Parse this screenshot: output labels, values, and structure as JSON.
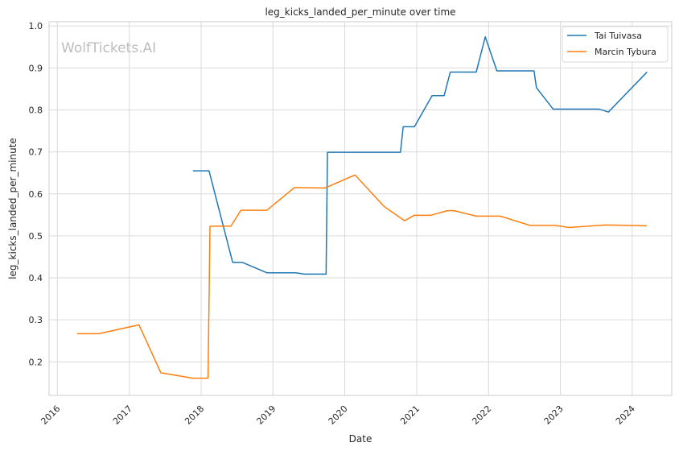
{
  "chart_data": {
    "type": "line",
    "title": "leg_kicks_landed_per_minute over time",
    "xlabel": "Date",
    "ylabel": "leg_kicks_landed_per_minute",
    "watermark": "WolfTickets.AI",
    "xlim": [
      "2015-11-20",
      "2024-07-20"
    ],
    "ylim": [
      0.12,
      1.01
    ],
    "x_ticks": [
      "2016-01-01",
      "2017-01-01",
      "2018-01-01",
      "2019-01-01",
      "2020-01-01",
      "2021-01-01",
      "2022-01-01",
      "2023-01-01",
      "2024-01-01"
    ],
    "x_tick_labels": [
      "2016",
      "2017",
      "2018",
      "2019",
      "2020",
      "2021",
      "2022",
      "2023",
      "2024"
    ],
    "y_ticks": [
      0.2,
      0.3,
      0.4,
      0.5,
      0.6,
      0.7,
      0.8,
      0.9,
      1.0
    ],
    "y_tick_labels": [
      "0.2",
      "0.3",
      "0.4",
      "0.5",
      "0.6",
      "0.7",
      "0.8",
      "0.9",
      "1.0"
    ],
    "grid": true,
    "legend_position": "top-right",
    "series": [
      {
        "name": "Tai Tuivasa",
        "color": "#1f77b4",
        "points": [
          [
            "2017-11-20",
            0.655
          ],
          [
            "2018-02-10",
            0.655
          ],
          [
            "2018-06-10",
            0.437
          ],
          [
            "2018-07-28",
            0.437
          ],
          [
            "2018-12-02",
            0.412
          ],
          [
            "2019-04-28",
            0.412
          ],
          [
            "2019-06-08",
            0.409
          ],
          [
            "2019-09-28",
            0.409
          ],
          [
            "2019-10-05",
            0.699
          ],
          [
            "2020-10-10",
            0.699
          ],
          [
            "2020-10-24",
            0.76
          ],
          [
            "2020-12-20",
            0.76
          ],
          [
            "2021-03-20",
            0.834
          ],
          [
            "2021-05-20",
            0.834
          ],
          [
            "2021-06-20",
            0.89
          ],
          [
            "2021-10-30",
            0.89
          ],
          [
            "2021-12-15",
            0.974
          ],
          [
            "2022-02-12",
            0.893
          ],
          [
            "2022-08-20",
            0.893
          ],
          [
            "2022-09-01",
            0.853
          ],
          [
            "2022-11-25",
            0.802
          ],
          [
            "2023-07-15",
            0.802
          ],
          [
            "2023-09-02",
            0.795
          ],
          [
            "2024-03-16",
            0.89
          ]
        ]
      },
      {
        "name": "Marcin Tybura",
        "color": "#ff7f0e",
        "points": [
          [
            "2016-04-10",
            0.267
          ],
          [
            "2016-07-30",
            0.267
          ],
          [
            "2017-02-19",
            0.288
          ],
          [
            "2017-06-10",
            0.174
          ],
          [
            "2017-11-20",
            0.161
          ],
          [
            "2018-02-05",
            0.161
          ],
          [
            "2018-02-15",
            0.523
          ],
          [
            "2018-06-01",
            0.523
          ],
          [
            "2018-07-22",
            0.561
          ],
          [
            "2018-12-01",
            0.561
          ],
          [
            "2019-04-20",
            0.615
          ],
          [
            "2019-09-22",
            0.614
          ],
          [
            "2020-02-22",
            0.645
          ],
          [
            "2020-07-19",
            0.57
          ],
          [
            "2020-10-31",
            0.536
          ],
          [
            "2020-12-19",
            0.549
          ],
          [
            "2021-03-13",
            0.549
          ],
          [
            "2021-06-05",
            0.56
          ],
          [
            "2021-07-10",
            0.56
          ],
          [
            "2021-10-30",
            0.547
          ],
          [
            "2022-03-01",
            0.547
          ],
          [
            "2022-07-30",
            0.525
          ],
          [
            "2022-12-03",
            0.525
          ],
          [
            "2023-02-15",
            0.52
          ],
          [
            "2023-08-15",
            0.526
          ],
          [
            "2024-03-16",
            0.524
          ]
        ]
      }
    ]
  }
}
